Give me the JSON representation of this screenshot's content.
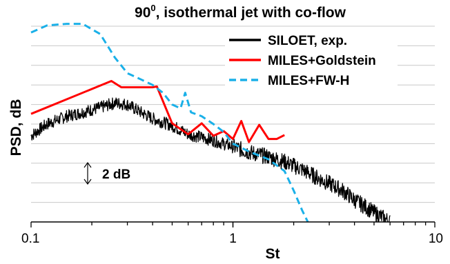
{
  "chart_data": {
    "type": "line",
    "title_main": "90",
    "title_sup": "0",
    "title_rest": ", isothermal jet with co-flow",
    "xlabel": "St",
    "ylabel": "PSD, dB",
    "x_scale": "log",
    "xlim": [
      0.1,
      10
    ],
    "x_ticks": [
      "0.1",
      "1",
      "10"
    ],
    "ylim_db": [
      0,
      25
    ],
    "grid": "horizontal",
    "legend_position": "top-right",
    "annotation": "2 dB",
    "series": [
      {
        "name": "SILOET, exp.",
        "color": "#000000",
        "style": "solid",
        "x": [
          0.1,
          0.12,
          0.15,
          0.18,
          0.22,
          0.26,
          0.3,
          0.35,
          0.4,
          0.5,
          0.6,
          0.7,
          0.8,
          1.0,
          1.2,
          1.5,
          1.8,
          2.2,
          2.6,
          3.0,
          3.5,
          4.0,
          4.5,
          5.0,
          5.5,
          6.0
        ],
        "y": [
          11.0,
          12.5,
          13.5,
          14.0,
          14.6,
          15.2,
          15.0,
          14.0,
          13.2,
          12.3,
          11.2,
          10.8,
          10.4,
          9.6,
          8.9,
          8.3,
          7.7,
          6.7,
          5.7,
          4.9,
          4.0,
          2.8,
          2.0,
          1.2,
          0.6,
          0.0
        ],
        "noise": 0.8
      },
      {
        "name": "MILES+Goldstein",
        "color": "#ff0000",
        "style": "solid",
        "x": [
          0.1,
          0.25,
          0.28,
          0.4,
          0.42,
          0.5,
          0.6,
          0.7,
          0.8,
          0.9,
          1.0,
          1.1,
          1.2,
          1.35,
          1.5,
          1.65,
          1.8
        ],
        "y": [
          13.8,
          18.0,
          17.2,
          17.2,
          17.3,
          12.6,
          11.2,
          12.6,
          11.0,
          11.6,
          10.6,
          12.9,
          10.2,
          12.4,
          10.6,
          10.6,
          11.1
        ]
      },
      {
        "name": "MILES+FW-H",
        "color": "#1ab0e8",
        "style": "dashed",
        "x": [
          0.1,
          0.12,
          0.15,
          0.18,
          0.22,
          0.26,
          0.3,
          0.35,
          0.4,
          0.45,
          0.5,
          0.55,
          0.58,
          0.62,
          0.7,
          0.8,
          0.9,
          1.0,
          1.2,
          1.5,
          1.8,
          2.0,
          2.2,
          2.35
        ],
        "y": [
          24.2,
          25.1,
          25.3,
          25.3,
          24.0,
          21.0,
          19.0,
          18.2,
          17.5,
          16.5,
          15.0,
          14.5,
          16.5,
          14.0,
          13.5,
          12.5,
          11.5,
          10.0,
          9.0,
          8.0,
          6.5,
          4.0,
          1.5,
          0.0
        ]
      }
    ]
  }
}
